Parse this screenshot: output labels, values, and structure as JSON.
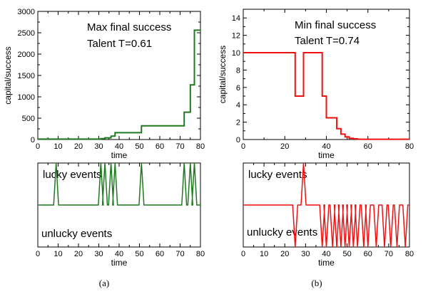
{
  "chart_data": [
    {
      "type": "line",
      "panel": "a-top",
      "xlabel": "time",
      "ylabel": "capital/success",
      "xlim": [
        0,
        80
      ],
      "ylim": [
        0,
        3000
      ],
      "xticks": [
        "0",
        "10",
        "20",
        "30",
        "40",
        "50",
        "60",
        "70",
        "80"
      ],
      "yticks": [
        "0",
        "500",
        "1000",
        "1500",
        "2000",
        "2500",
        "3000"
      ],
      "annotations": [
        "Max final success",
        "Talent T=0.61"
      ],
      "color": "#1f7a1f",
      "series": [
        {
          "points": [
            [
              0,
              10
            ],
            [
              31,
              10
            ],
            [
              31,
              20
            ],
            [
              33,
              20
            ],
            [
              33,
              40
            ],
            [
              36,
              40
            ],
            [
              36,
              80
            ],
            [
              38,
              80
            ],
            [
              38,
              160
            ],
            [
              51,
              160
            ],
            [
              51,
              320
            ],
            [
              72,
              320
            ],
            [
              72,
              640
            ],
            [
              75,
              640
            ],
            [
              75,
              1280
            ],
            [
              77,
              1280
            ],
            [
              77,
              2560
            ],
            [
              80,
              2560
            ]
          ]
        }
      ]
    },
    {
      "type": "line",
      "panel": "a-bottom",
      "xlabel": "time",
      "xlim": [
        0,
        80
      ],
      "ylim": [
        -1,
        1
      ],
      "xticks": [
        "0",
        "10",
        "20",
        "30",
        "40",
        "50",
        "60",
        "70",
        "80"
      ],
      "annotations": [
        "lucky events",
        "unlucky events"
      ],
      "color": "#1f7a1f",
      "lucky": [
        9,
        31,
        33,
        36,
        38,
        51,
        72,
        75,
        77
      ],
      "unlucky": []
    },
    {
      "type": "line",
      "panel": "b-top",
      "xlabel": "time",
      "ylabel": "capital/success",
      "xlim": [
        0,
        80
      ],
      "ylim": [
        0,
        15
      ],
      "xticks": [
        "0",
        "20",
        "40",
        "60",
        "80"
      ],
      "yticks": [
        "0",
        "2",
        "4",
        "6",
        "8",
        "10",
        "12",
        "14"
      ],
      "annotations": [
        "Min final success",
        "Talent T=0.74"
      ],
      "color": "#ee1111",
      "series": [
        {
          "points": [
            [
              0,
              10
            ],
            [
              25,
              10
            ],
            [
              25,
              5
            ],
            [
              29,
              5
            ],
            [
              29,
              10
            ],
            [
              38,
              10
            ],
            [
              38,
              5
            ],
            [
              40,
              5
            ],
            [
              40,
              2.5
            ],
            [
              45,
              2.5
            ],
            [
              45,
              1.25
            ],
            [
              47,
              1.25
            ],
            [
              47,
              0.625
            ],
            [
              49,
              0.625
            ],
            [
              49,
              0.3125
            ],
            [
              51,
              0.3125
            ],
            [
              51,
              0.15
            ],
            [
              53,
              0.15
            ],
            [
              53,
              0.08
            ],
            [
              55,
              0.08
            ],
            [
              55,
              0.03
            ],
            [
              80,
              0.03
            ]
          ]
        }
      ]
    },
    {
      "type": "line",
      "panel": "b-bottom",
      "xlabel": "time",
      "xlim": [
        0,
        80
      ],
      "ylim": [
        -1,
        1
      ],
      "xticks": [
        "0",
        "10",
        "20",
        "30",
        "40",
        "50",
        "60",
        "70",
        "80"
      ],
      "annotations": [
        "lucky events",
        "unlucky events"
      ],
      "color": "#ee1111",
      "lucky": [
        29
      ],
      "unlucky": [
        25,
        38,
        40,
        43,
        45,
        47,
        49,
        51,
        53,
        55,
        58,
        60,
        64,
        68,
        71,
        74,
        78
      ]
    }
  ],
  "captions": [
    "(a)",
    "(b)"
  ]
}
